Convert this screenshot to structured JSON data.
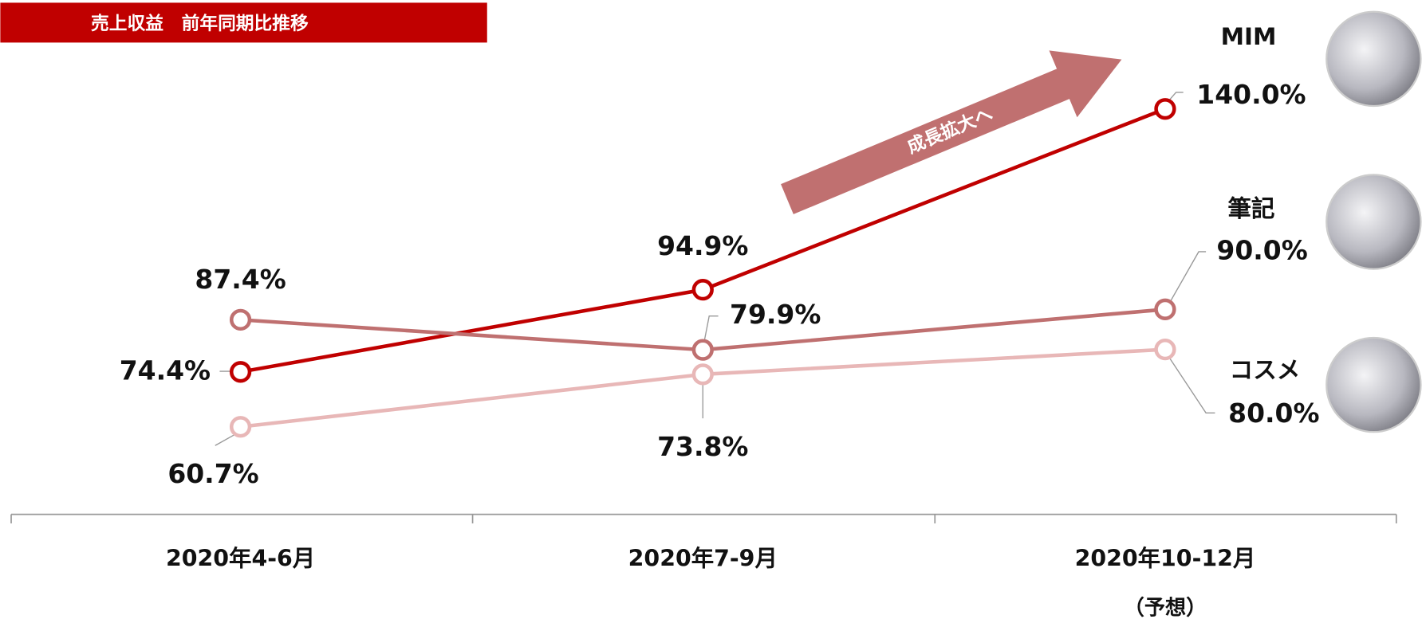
{
  "chart_data": {
    "type": "line",
    "title": "売上収益　前年同期比推移",
    "annotation": "成長拡大へ",
    "categories": [
      "2020年4-6月",
      "2020年7-9月",
      "2020年10-12月"
    ],
    "category_notes": [
      null,
      null,
      "（予想）"
    ],
    "ylim": [
      40,
      150
    ],
    "series": [
      {
        "name": "MIM",
        "color": "#c00000",
        "values": [
          74.4,
          94.9,
          140.0
        ],
        "value_labels": [
          "74.4%",
          "94.9%",
          "140.0%"
        ]
      },
      {
        "name": "筆記",
        "color": "#bf7070",
        "values": [
          87.4,
          79.9,
          90.0
        ],
        "value_labels": [
          "87.4%",
          "79.9%",
          "90.0%"
        ]
      },
      {
        "name": "コスメ",
        "color": "#e8b7b7",
        "values": [
          60.7,
          73.8,
          80.0
        ],
        "value_labels": [
          "60.7%",
          "73.8%",
          "80.0%"
        ]
      }
    ]
  }
}
